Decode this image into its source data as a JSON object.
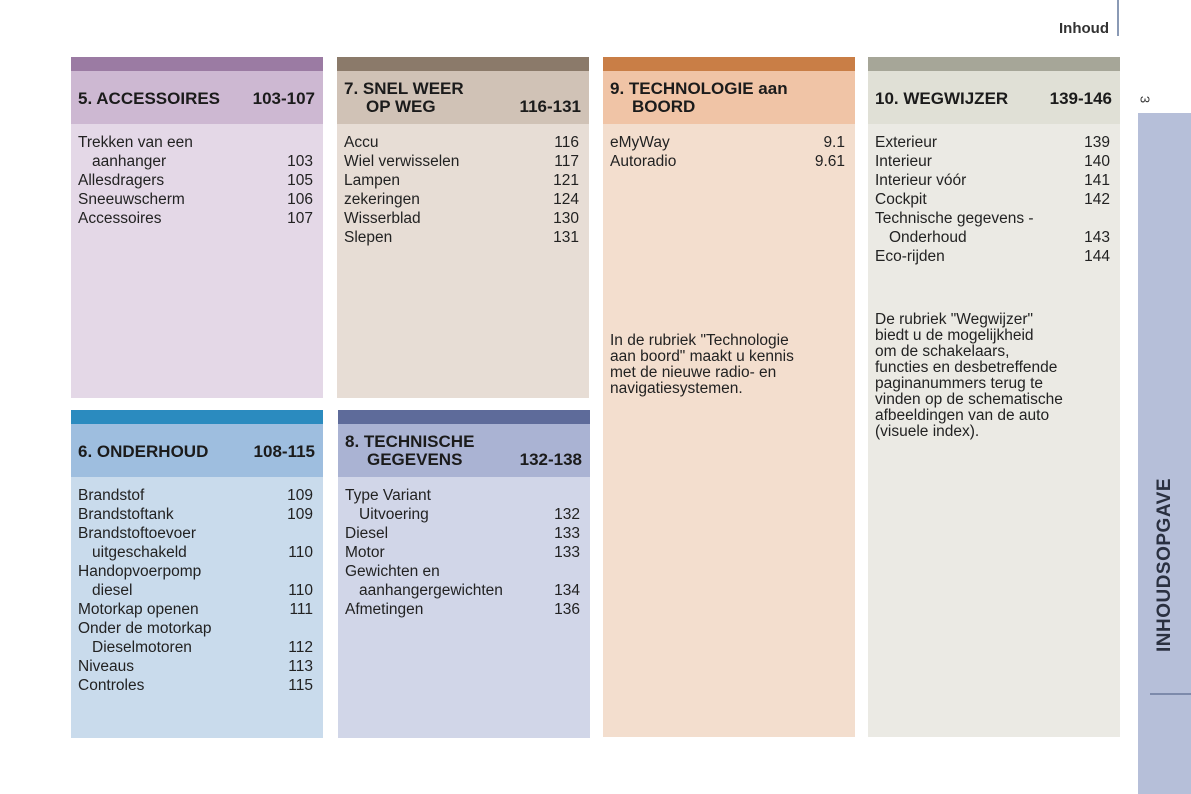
{
  "header": {
    "title": "Inhoud",
    "page_number": "3"
  },
  "side_tab": {
    "label": "INHOUDSOPGAVE"
  },
  "sections": {
    "accessoires": {
      "title": "5. ACCESSOIRES",
      "range": "103-107",
      "entries": [
        {
          "label": "Trekken van een",
          "page": ""
        },
        {
          "label": "aanhanger",
          "page": "103"
        },
        {
          "label": "Allesdragers",
          "page": "105"
        },
        {
          "label": "Sneeuwscherm",
          "page": "106"
        },
        {
          "label": "Accessoires",
          "page": "107"
        }
      ]
    },
    "onderhoud": {
      "title": "6. ONDERHOUD",
      "range": "108-115",
      "entries": [
        {
          "label": "Brandstof",
          "page": "109"
        },
        {
          "label": "Brandstoftank",
          "page": "109"
        },
        {
          "label": "Brandstoftoevoer",
          "page": ""
        },
        {
          "label": "uitgeschakeld",
          "page": "110"
        },
        {
          "label": "Handopvoerpomp",
          "page": ""
        },
        {
          "label": "diesel",
          "page": "110"
        },
        {
          "label": "Motorkap openen",
          "page": "111"
        },
        {
          "label": "Onder de motorkap",
          "page": ""
        },
        {
          "label": "Dieselmotoren",
          "page": "112"
        },
        {
          "label": "Niveaus",
          "page": "113"
        },
        {
          "label": "Controles",
          "page": "115"
        }
      ]
    },
    "snel_weer": {
      "title_line1": "7. SNEL WEER",
      "title_line2": "OP WEG",
      "range": "116-131",
      "entries": [
        {
          "label": "Accu",
          "page": "116"
        },
        {
          "label": "Wiel verwisselen",
          "page": "117"
        },
        {
          "label": "Lampen",
          "page": "121"
        },
        {
          "label": "zekeringen",
          "page": "124"
        },
        {
          "label": "Wisserblad",
          "page": "130"
        },
        {
          "label": "Slepen",
          "page": "131"
        }
      ]
    },
    "technische": {
      "title_line1": "8. TECHNISCHE",
      "title_line2": "GEGEVENS",
      "range": "132-138",
      "entries": [
        {
          "label": "Type Variant",
          "page": ""
        },
        {
          "label": "Uitvoering",
          "page": "132"
        },
        {
          "label": "Diesel",
          "page": "133"
        },
        {
          "label": "Motor",
          "page": "133"
        },
        {
          "label": "Gewichten en",
          "page": ""
        },
        {
          "label": "aanhangergewichten",
          "page": "134"
        },
        {
          "label": "Afmetingen",
          "page": "136"
        }
      ]
    },
    "technologie": {
      "title_line1": "9. TECHNOLOGIE aan",
      "title_line2": "BOORD",
      "entries": [
        {
          "label": "eMyWay",
          "page": "9.1"
        },
        {
          "label": "Autoradio",
          "page": "9.61"
        }
      ],
      "note_lines": [
        "In de rubriek \"Technologie",
        "aan boord\" maakt u kennis",
        "met de nieuwe radio- en",
        "navigatiesystemen."
      ]
    },
    "wegwijzer": {
      "title": "10. WEGWIJZER",
      "range": "139-146",
      "entries": [
        {
          "label": "Exterieur",
          "page": "139"
        },
        {
          "label": "Interieur",
          "page": "140"
        },
        {
          "label": "Interieur vóór",
          "page": "141"
        },
        {
          "label": "Cockpit",
          "page": "142"
        },
        {
          "label": "Technische gegevens -",
          "page": ""
        },
        {
          "label": "Onderhoud",
          "page": "143"
        },
        {
          "label": "Eco-rijden",
          "page": "144"
        }
      ],
      "note_lines": [
        "De rubriek \"Wegwijzer\"",
        "biedt u de mogelijkheid",
        "om de schakelaars,",
        "functies en desbetreffende",
        "paginanummers terug te",
        "vinden op de schematische",
        "afbeeldingen van de auto",
        "(visuele index)."
      ]
    }
  },
  "colors": {
    "accessoires_band": "#9b7ba3",
    "onderhoud_band": "#2b8bbf",
    "snel_weer_band": "#8b7a6a",
    "technische_band": "#5e6b9a",
    "technologie_band": "#c97e46",
    "wegwijzer_band": "#a6a698",
    "side_tab": "#b6bfd9"
  }
}
